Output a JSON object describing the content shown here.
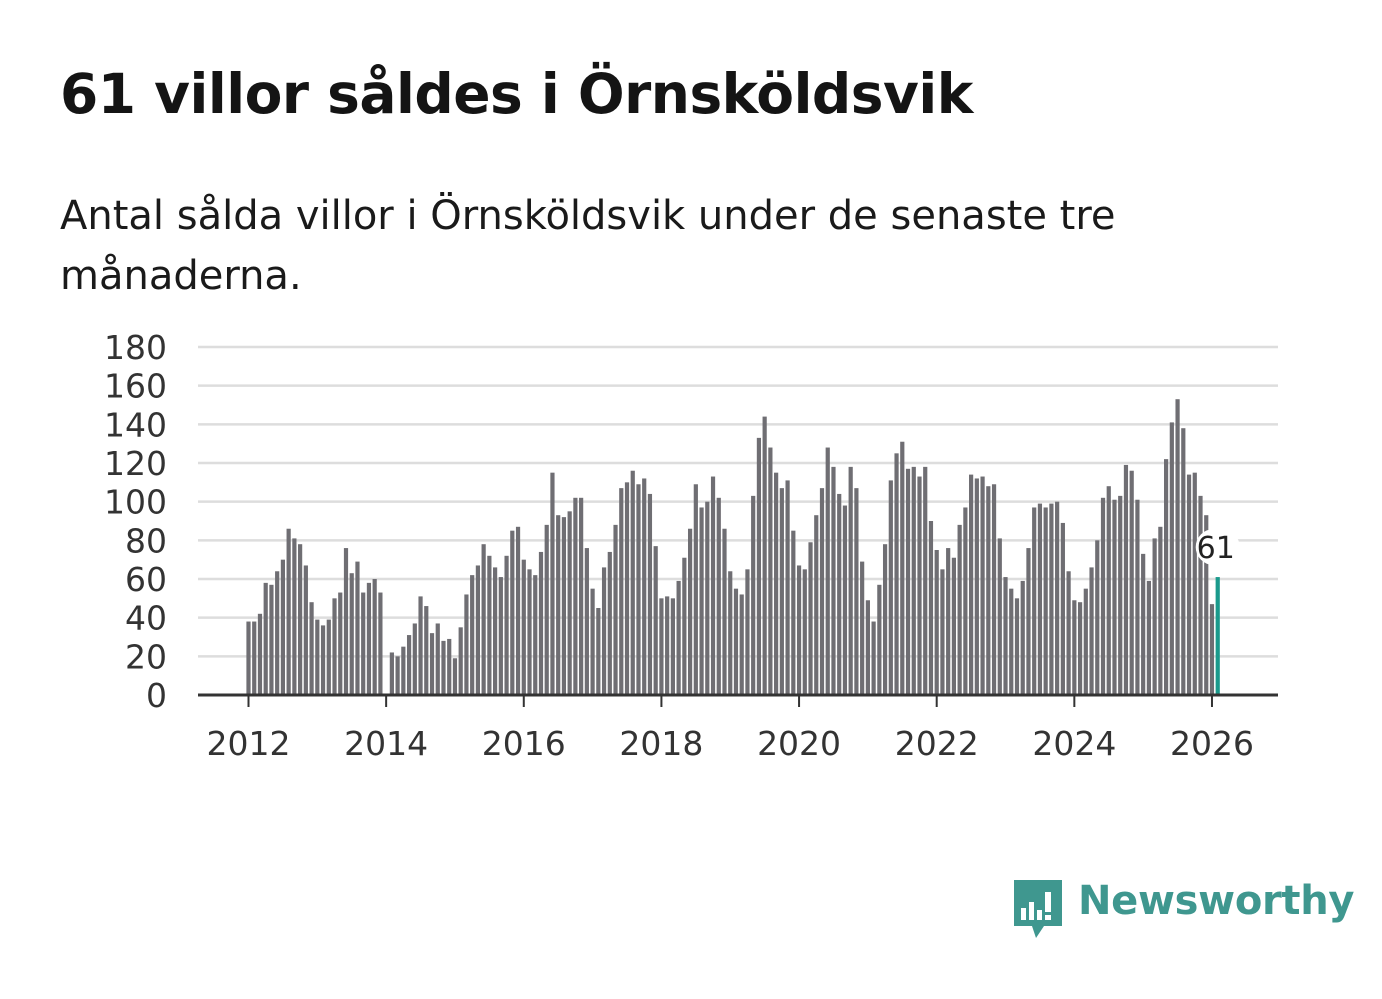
{
  "header": {
    "title": "61 villor såldes i Örnsköldsvik",
    "subtitle": "Antal sålda villor i Örnsköldsvik under de senaste tre månaderna."
  },
  "brand": {
    "name": "Newsworthy",
    "color": "#3f978f",
    "icon": "newsworthy-logo-icon"
  },
  "colors": {
    "bar": "#6f6e73",
    "highlight": "#1a9a8c",
    "grid": "#dddddd",
    "axis": "#333333"
  },
  "chart_data": {
    "type": "bar",
    "title": "61 villor såldes i Örnsköldsvik",
    "xlabel": "",
    "ylabel": "",
    "ylim": [
      0,
      180
    ],
    "yticks": [
      "0",
      "20",
      "40",
      "60",
      "80",
      "100",
      "120",
      "140",
      "160",
      "180"
    ],
    "xticks": [
      {
        "label": "2012",
        "index": 0
      },
      {
        "label": "2014",
        "index": 24
      },
      {
        "label": "2016",
        "index": 48
      },
      {
        "label": "2018",
        "index": 72
      },
      {
        "label": "2020",
        "index": 96
      },
      {
        "label": "2022",
        "index": 120
      },
      {
        "label": "2024",
        "index": 144
      },
      {
        "label": "2026",
        "index": 168
      }
    ],
    "start": "2012-01",
    "frequency": "monthly, rolling three-month sum",
    "highlight_label": "61",
    "values": [
      38,
      38,
      42,
      58,
      57,
      64,
      70,
      86,
      81,
      78,
      67,
      48,
      39,
      36,
      39,
      50,
      53,
      76,
      63,
      69,
      53,
      58,
      60,
      53,
      0,
      22,
      20,
      25,
      31,
      37,
      51,
      46,
      32,
      37,
      28,
      29,
      19,
      35,
      52,
      62,
      67,
      78,
      72,
      66,
      61,
      72,
      85,
      87,
      70,
      65,
      62,
      74,
      88,
      115,
      93,
      92,
      95,
      102,
      102,
      76,
      55,
      45,
      66,
      74,
      88,
      107,
      110,
      116,
      109,
      112,
      104,
      77,
      50,
      51,
      50,
      59,
      71,
      86,
      109,
      97,
      100,
      113,
      102,
      86,
      64,
      55,
      52,
      65,
      103,
      133,
      144,
      128,
      115,
      107,
      111,
      85,
      67,
      65,
      79,
      93,
      107,
      128,
      118,
      104,
      98,
      118,
      107,
      69,
      49,
      38,
      57,
      78,
      111,
      125,
      131,
      117,
      118,
      113,
      118,
      90,
      75,
      65,
      76,
      71,
      88,
      97,
      114,
      112,
      113,
      108,
      109,
      81,
      61,
      55,
      50,
      59,
      76,
      97,
      99,
      97,
      99,
      100,
      89,
      64,
      49,
      48,
      55,
      66,
      80,
      102,
      108,
      101,
      103,
      119,
      116,
      101,
      73,
      59,
      81,
      87,
      122,
      141,
      153,
      138,
      114,
      115,
      103,
      93,
      47,
      61
    ]
  }
}
